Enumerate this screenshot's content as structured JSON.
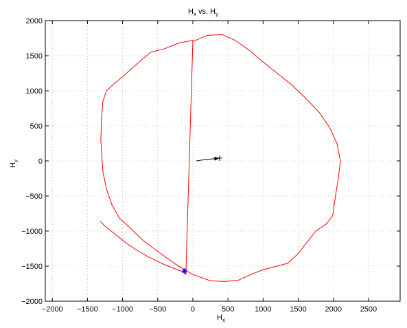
{
  "chart_data": {
    "type": "line",
    "title": {
      "main": "H",
      "sub1": "x",
      "mid": " vs. H",
      "sub2": "y"
    },
    "xlabel": {
      "main": "H",
      "sub": "x"
    },
    "ylabel": {
      "main": "H",
      "sub": "y"
    },
    "xlim": [
      -2100,
      2950
    ],
    "ylim": [
      -2000,
      2000
    ],
    "grid": true,
    "xticks": [
      -2000,
      -1500,
      -1000,
      -500,
      0,
      500,
      1000,
      1500,
      2000,
      2500
    ],
    "xtick_labels": [
      "−2000",
      "−1500",
      "−1000",
      "−500",
      "0",
      "500",
      "1000",
      "1500",
      "2000",
      "2500"
    ],
    "yticks": [
      -2000,
      -1500,
      -1000,
      -500,
      0,
      500,
      1000,
      1500,
      2000
    ],
    "ytick_labels": [
      "−2000",
      "−1500",
      "−1000",
      "−500",
      "0",
      "500",
      "1000",
      "1500",
      "2000"
    ],
    "series": [
      {
        "color": "#ff0000",
        "x": [
          0,
          200,
          420,
          600,
          800,
          1000,
          1200,
          1400,
          1600,
          1800,
          1950,
          2050,
          2100,
          2070,
          2030,
          1990,
          1900,
          1750,
          1500,
          1350,
          1200,
          1000,
          800,
          650,
          450,
          250,
          0,
          -250,
          -500,
          -700,
          -900,
          -1050,
          -1150,
          -1230,
          -1280,
          -1290,
          -1310,
          -1300,
          -1280,
          -1230,
          -1120,
          -1000,
          -800,
          -600,
          -400,
          -200,
          0,
          -100,
          -140,
          -200,
          -400,
          -650,
          -850,
          -950,
          -1050,
          -1150,
          -1250,
          -1320
        ],
        "y": [
          1700,
          1790,
          1800,
          1720,
          1580,
          1410,
          1250,
          1090,
          900,
          690,
          470,
          250,
          0,
          -250,
          -500,
          -780,
          -900,
          -1000,
          -1320,
          -1460,
          -1500,
          -1550,
          -1630,
          -1700,
          -1720,
          -1710,
          -1620,
          -1470,
          -1290,
          -1140,
          -950,
          -810,
          -630,
          -400,
          -150,
          0,
          300,
          600,
          850,
          1000,
          1100,
          1200,
          1380,
          1550,
          1600,
          1680,
          1720,
          -1620,
          -1580,
          -1560,
          -1480,
          -1360,
          -1240,
          -1170,
          -1090,
          -1010,
          -930,
          -860
        ]
      },
      {
        "color": "#000000",
        "x": [
          50,
          180,
          300,
          380
        ],
        "y": [
          0,
          20,
          30,
          40
        ],
        "start_marker": {
          "x": 380,
          "y": 40,
          "symbol": "+"
        }
      }
    ],
    "points": [
      {
        "x": -120,
        "y": -1570,
        "marker": "*",
        "color": "#0000ff"
      }
    ]
  }
}
